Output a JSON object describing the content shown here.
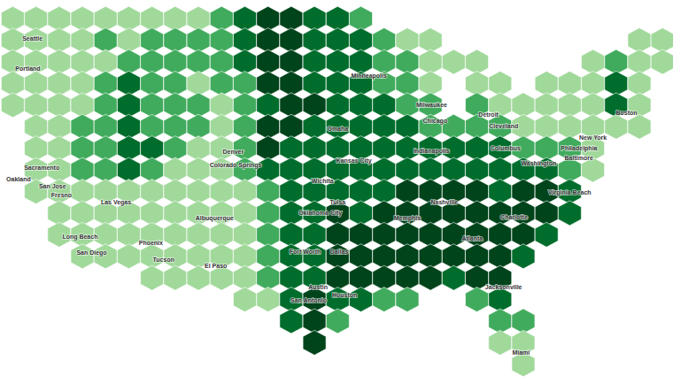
{
  "chart_data": {
    "type": "hexbin_map",
    "tick_labels": false,
    "xlim": [
      -125.1,
      -67.1
    ],
    "ylim": [
      23.7,
      50.3
    ],
    "x": [
      -124,
      -122,
      -120,
      -118,
      -116,
      -114,
      -112,
      -110,
      -108,
      -106,
      -104,
      -102,
      -100,
      -98,
      -96,
      -94,
      -92,
      -90,
      -88,
      -86,
      -84,
      -82,
      -80,
      -78,
      -76,
      -74,
      -72,
      -70,
      -68
    ],
    "y": [
      49,
      47.5,
      46,
      44.5,
      43,
      41.5,
      40,
      38.5,
      37,
      35.5,
      34,
      32.5,
      31,
      29.5,
      28,
      26.5,
      25
    ],
    "cells": [
      [
        1,
        1,
        1,
        1,
        1,
        1,
        1,
        1,
        1,
        2,
        3,
        4,
        4,
        3,
        3,
        2,
        0,
        0,
        0,
        0,
        0,
        0,
        0,
        0,
        0,
        0,
        0,
        0,
        0
      ],
      [
        1,
        1,
        1,
        1,
        2,
        1,
        2,
        2,
        2,
        2,
        3,
        4,
        4,
        3,
        3,
        3,
        2,
        1,
        1,
        0,
        0,
        0,
        0,
        0,
        0,
        0,
        0,
        1,
        1
      ],
      [
        1,
        1,
        1,
        1,
        1,
        2,
        2,
        2,
        2,
        2,
        3,
        4,
        4,
        3,
        3,
        3,
        2,
        2,
        1,
        1,
        1,
        0,
        0,
        0,
        0,
        1,
        2,
        1,
        1
      ],
      [
        1,
        1,
        1,
        1,
        2,
        3,
        2,
        2,
        1,
        2,
        2,
        4,
        4,
        3,
        3,
        3,
        2,
        2,
        1,
        0,
        1,
        1,
        0,
        1,
        1,
        1,
        3,
        1,
        0
      ],
      [
        1,
        1,
        1,
        1,
        2,
        3,
        2,
        2,
        2,
        1,
        2,
        3,
        4,
        4,
        3,
        3,
        3,
        2,
        2,
        0,
        2,
        1,
        1,
        1,
        1,
        1,
        3,
        1,
        0
      ],
      [
        0,
        1,
        1,
        2,
        2,
        3,
        2,
        2,
        2,
        1,
        2,
        4,
        4,
        3,
        3,
        3,
        3,
        3,
        2,
        2,
        2,
        2,
        1,
        1,
        1,
        1,
        1,
        1,
        0
      ],
      [
        0,
        1,
        1,
        2,
        2,
        3,
        3,
        2,
        1,
        1,
        2,
        4,
        3,
        3,
        3,
        3,
        3,
        3,
        3,
        3,
        3,
        3,
        2,
        2,
        2,
        1,
        0,
        0,
        0
      ],
      [
        0,
        1,
        1,
        2,
        2,
        3,
        2,
        1,
        1,
        1,
        2,
        3,
        3,
        3,
        3,
        3,
        3,
        3,
        3,
        3,
        3,
        3,
        3,
        3,
        2,
        1,
        0,
        0,
        0
      ],
      [
        0,
        1,
        1,
        1,
        1,
        1,
        1,
        1,
        1,
        1,
        1,
        2,
        3,
        3,
        3,
        3,
        3,
        4,
        4,
        4,
        4,
        3,
        4,
        4,
        3,
        0,
        0,
        0,
        0
      ],
      [
        0,
        0,
        1,
        1,
        1,
        1,
        1,
        1,
        1,
        1,
        1,
        2,
        3,
        3,
        4,
        3,
        4,
        4,
        4,
        4,
        4,
        4,
        4,
        4,
        3,
        0,
        0,
        0,
        0
      ],
      [
        0,
        0,
        1,
        1,
        1,
        1,
        1,
        1,
        1,
        1,
        1,
        2,
        3,
        3,
        4,
        4,
        4,
        4,
        4,
        4,
        4,
        4,
        4,
        3,
        0,
        0,
        0,
        0,
        0
      ],
      [
        0,
        0,
        0,
        1,
        1,
        1,
        1,
        1,
        1,
        1,
        1,
        2,
        3,
        3,
        4,
        4,
        4,
        4,
        4,
        4,
        4,
        4,
        3,
        0,
        0,
        0,
        0,
        0,
        0
      ],
      [
        0,
        0,
        0,
        0,
        0,
        0,
        1,
        1,
        1,
        1,
        1,
        2,
        3,
        3,
        4,
        4,
        4,
        4,
        4,
        3,
        4,
        4,
        0,
        0,
        0,
        0,
        0,
        0,
        0
      ],
      [
        0,
        0,
        0,
        0,
        0,
        0,
        0,
        0,
        0,
        0,
        1,
        1,
        3,
        4,
        3,
        3,
        2,
        2,
        0,
        0,
        2,
        3,
        0,
        0,
        0,
        0,
        0,
        0,
        0
      ],
      [
        0,
        0,
        0,
        0,
        0,
        0,
        0,
        0,
        0,
        0,
        0,
        0,
        3,
        4,
        2,
        0,
        0,
        0,
        0,
        0,
        0,
        2,
        2,
        0,
        0,
        0,
        0,
        0,
        0
      ],
      [
        0,
        0,
        0,
        0,
        0,
        0,
        0,
        0,
        0,
        0,
        0,
        0,
        0,
        4,
        0,
        0,
        0,
        0,
        0,
        0,
        0,
        1,
        1,
        0,
        0,
        0,
        0,
        0,
        0
      ],
      [
        0,
        0,
        0,
        0,
        0,
        0,
        0,
        0,
        0,
        0,
        0,
        0,
        0,
        0,
        0,
        0,
        0,
        0,
        0,
        0,
        0,
        0,
        1,
        0,
        0,
        0,
        0,
        0,
        0
      ]
    ],
    "cell_range": [
      0,
      4
    ],
    "color": "#00441b",
    "cities": [
      {
        "name": "Seattle",
        "lon": -122.3,
        "lat": 47.6
      },
      {
        "name": "Portland",
        "lon": -122.7,
        "lat": 45.5
      },
      {
        "name": "Sacramento",
        "lon": -121.5,
        "lat": 38.6
      },
      {
        "name": "Oakland",
        "lon": -122.3,
        "lat": 37.8
      },
      {
        "name": "San Jose",
        "lon": -121.9,
        "lat": 37.3
      },
      {
        "name": "Fresno",
        "lon": -119.8,
        "lat": 36.7
      },
      {
        "name": "Las Vegas",
        "lon": -115.1,
        "lat": 36.2
      },
      {
        "name": "Long Beach",
        "lon": -118.2,
        "lat": 33.8
      },
      {
        "name": "San Diego",
        "lon": -117.2,
        "lat": 32.7
      },
      {
        "name": "Phoenix",
        "lon": -112.1,
        "lat": 33.4
      },
      {
        "name": "Tucson",
        "lon": -111.0,
        "lat": 32.2
      },
      {
        "name": "Albuquerque",
        "lon": -106.6,
        "lat": 35.1
      },
      {
        "name": "El Paso",
        "lon": -106.5,
        "lat": 31.8
      },
      {
        "name": "Denver",
        "lon": -105.0,
        "lat": 39.7
      },
      {
        "name": "Colorado Springs",
        "lon": -104.8,
        "lat": 38.8
      },
      {
        "name": "Minneapolis",
        "lon": -93.3,
        "lat": 45.0
      },
      {
        "name": "Omaha",
        "lon": -96.0,
        "lat": 41.3
      },
      {
        "name": "Kansas City",
        "lon": -94.6,
        "lat": 39.1
      },
      {
        "name": "Wichita",
        "lon": -97.3,
        "lat": 37.7
      },
      {
        "name": "Oklahoma City",
        "lon": -97.5,
        "lat": 35.5
      },
      {
        "name": "Tulsa",
        "lon": -96.0,
        "lat": 36.2
      },
      {
        "name": "Fort Worth",
        "lon": -97.3,
        "lat": 32.8
      },
      {
        "name": "Dallas",
        "lon": -96.8,
        "lat": 32.8
      },
      {
        "name": "Austin",
        "lon": -97.7,
        "lat": 30.3
      },
      {
        "name": "San Antonio",
        "lon": -98.5,
        "lat": 29.4
      },
      {
        "name": "Houston",
        "lon": -95.4,
        "lat": 29.8
      },
      {
        "name": "Memphis",
        "lon": -90.0,
        "lat": 35.1
      },
      {
        "name": "Nashville",
        "lon": -86.8,
        "lat": 36.2
      },
      {
        "name": "Atlanta",
        "lon": -84.4,
        "lat": 33.7
      },
      {
        "name": "Charlotte",
        "lon": -80.8,
        "lat": 35.2
      },
      {
        "name": "Jacksonville",
        "lon": -81.7,
        "lat": 30.3
      },
      {
        "name": "Miami",
        "lon": -80.2,
        "lat": 25.8
      },
      {
        "name": "Milwaukee",
        "lon": -87.9,
        "lat": 43.0
      },
      {
        "name": "Chicago",
        "lon": -87.6,
        "lat": 41.9
      },
      {
        "name": "Detroit",
        "lon": -83.0,
        "lat": 42.3
      },
      {
        "name": "Cleveland",
        "lon": -81.7,
        "lat": 41.5
      },
      {
        "name": "Indianapolis",
        "lon": -86.2,
        "lat": 39.8
      },
      {
        "name": "Columbus",
        "lon": -83.0,
        "lat": 40.0
      },
      {
        "name": "Baltimore",
        "lon": -76.6,
        "lat": 39.3
      },
      {
        "name": "Washington",
        "lon": -77.0,
        "lat": 38.9
      },
      {
        "name": "Philadelphia",
        "lon": -75.2,
        "lat": 40.0
      },
      {
        "name": "New York",
        "lon": -74.0,
        "lat": 40.7
      },
      {
        "name": "Boston",
        "lon": -71.1,
        "lat": 42.4
      },
      {
        "name": "Virginia Beach",
        "lon": -76.0,
        "lat": 36.9
      }
    ]
  }
}
